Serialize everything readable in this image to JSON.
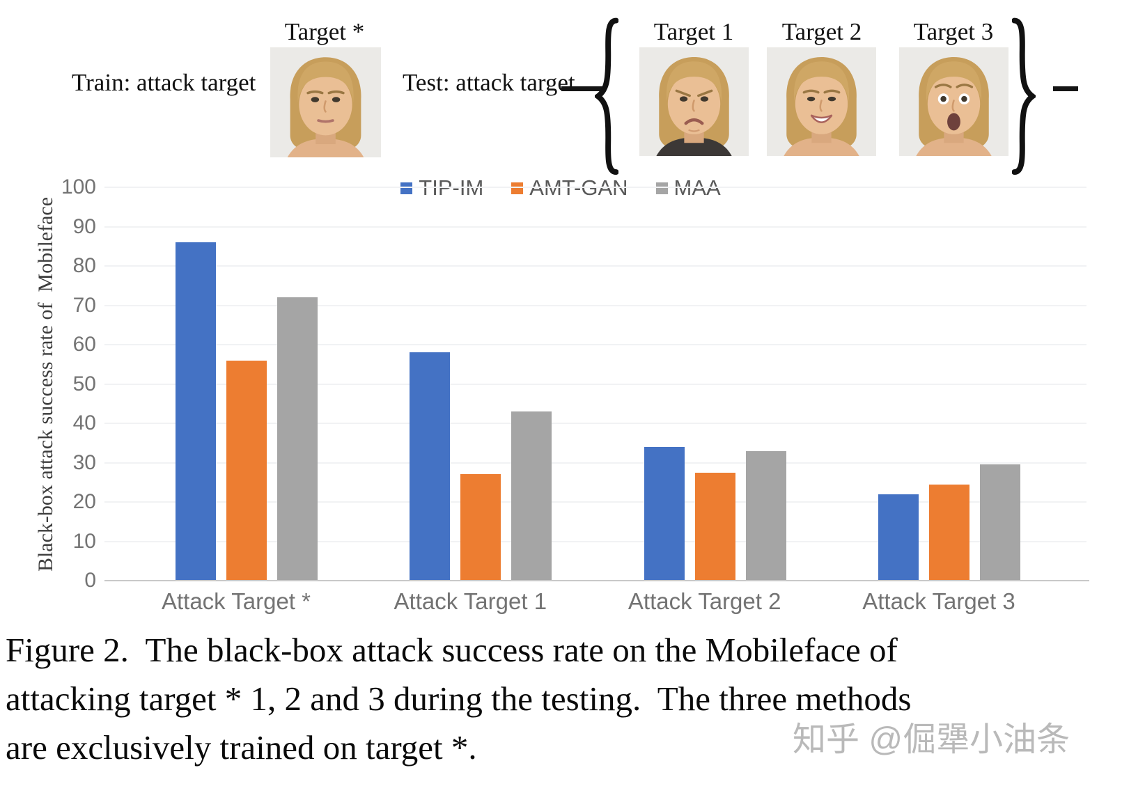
{
  "figure": {
    "train_label": "Train: attack target",
    "test_label": "Test: attack target",
    "train_target": {
      "label": "Target *",
      "expression": "neutral"
    },
    "test_targets": [
      {
        "label": "Target 1",
        "expression": "frown"
      },
      {
        "label": "Target 2",
        "expression": "smile"
      },
      {
        "label": "Target 3",
        "expression": "surprised"
      }
    ]
  },
  "chart_data": {
    "type": "bar",
    "categories": [
      "Attack Target *",
      "Attack Target 1",
      "Attack Target 2",
      "Attack Target 3"
    ],
    "series": [
      {
        "name": "TIP-IM",
        "color": "#4472C4",
        "values": [
          86,
          58,
          34,
          22
        ]
      },
      {
        "name": "AMT-GAN",
        "color": "#ED7D31",
        "values": [
          56,
          27,
          27.5,
          24.5
        ]
      },
      {
        "name": "MAA",
        "color": "#A5A5A5",
        "values": [
          72,
          43,
          33,
          29.5
        ]
      }
    ],
    "title": "",
    "xlabel": "",
    "ylabel": "Black-box attack success rate of  Mobileface",
    "ylim": [
      0,
      100
    ],
    "yticks": [
      0,
      10,
      20,
      30,
      40,
      50,
      60,
      70,
      80,
      90,
      100
    ],
    "grid": true,
    "legend_position": "top-center"
  },
  "caption": {
    "lines": [
      "Figure 2.  The black-box attack success rate on the Mobileface of",
      "attacking target * 1, 2 and 3 during the testing.  The three methods",
      "are exclusively trained on target *."
    ]
  },
  "watermark": "知乎 @倔犟小油条"
}
